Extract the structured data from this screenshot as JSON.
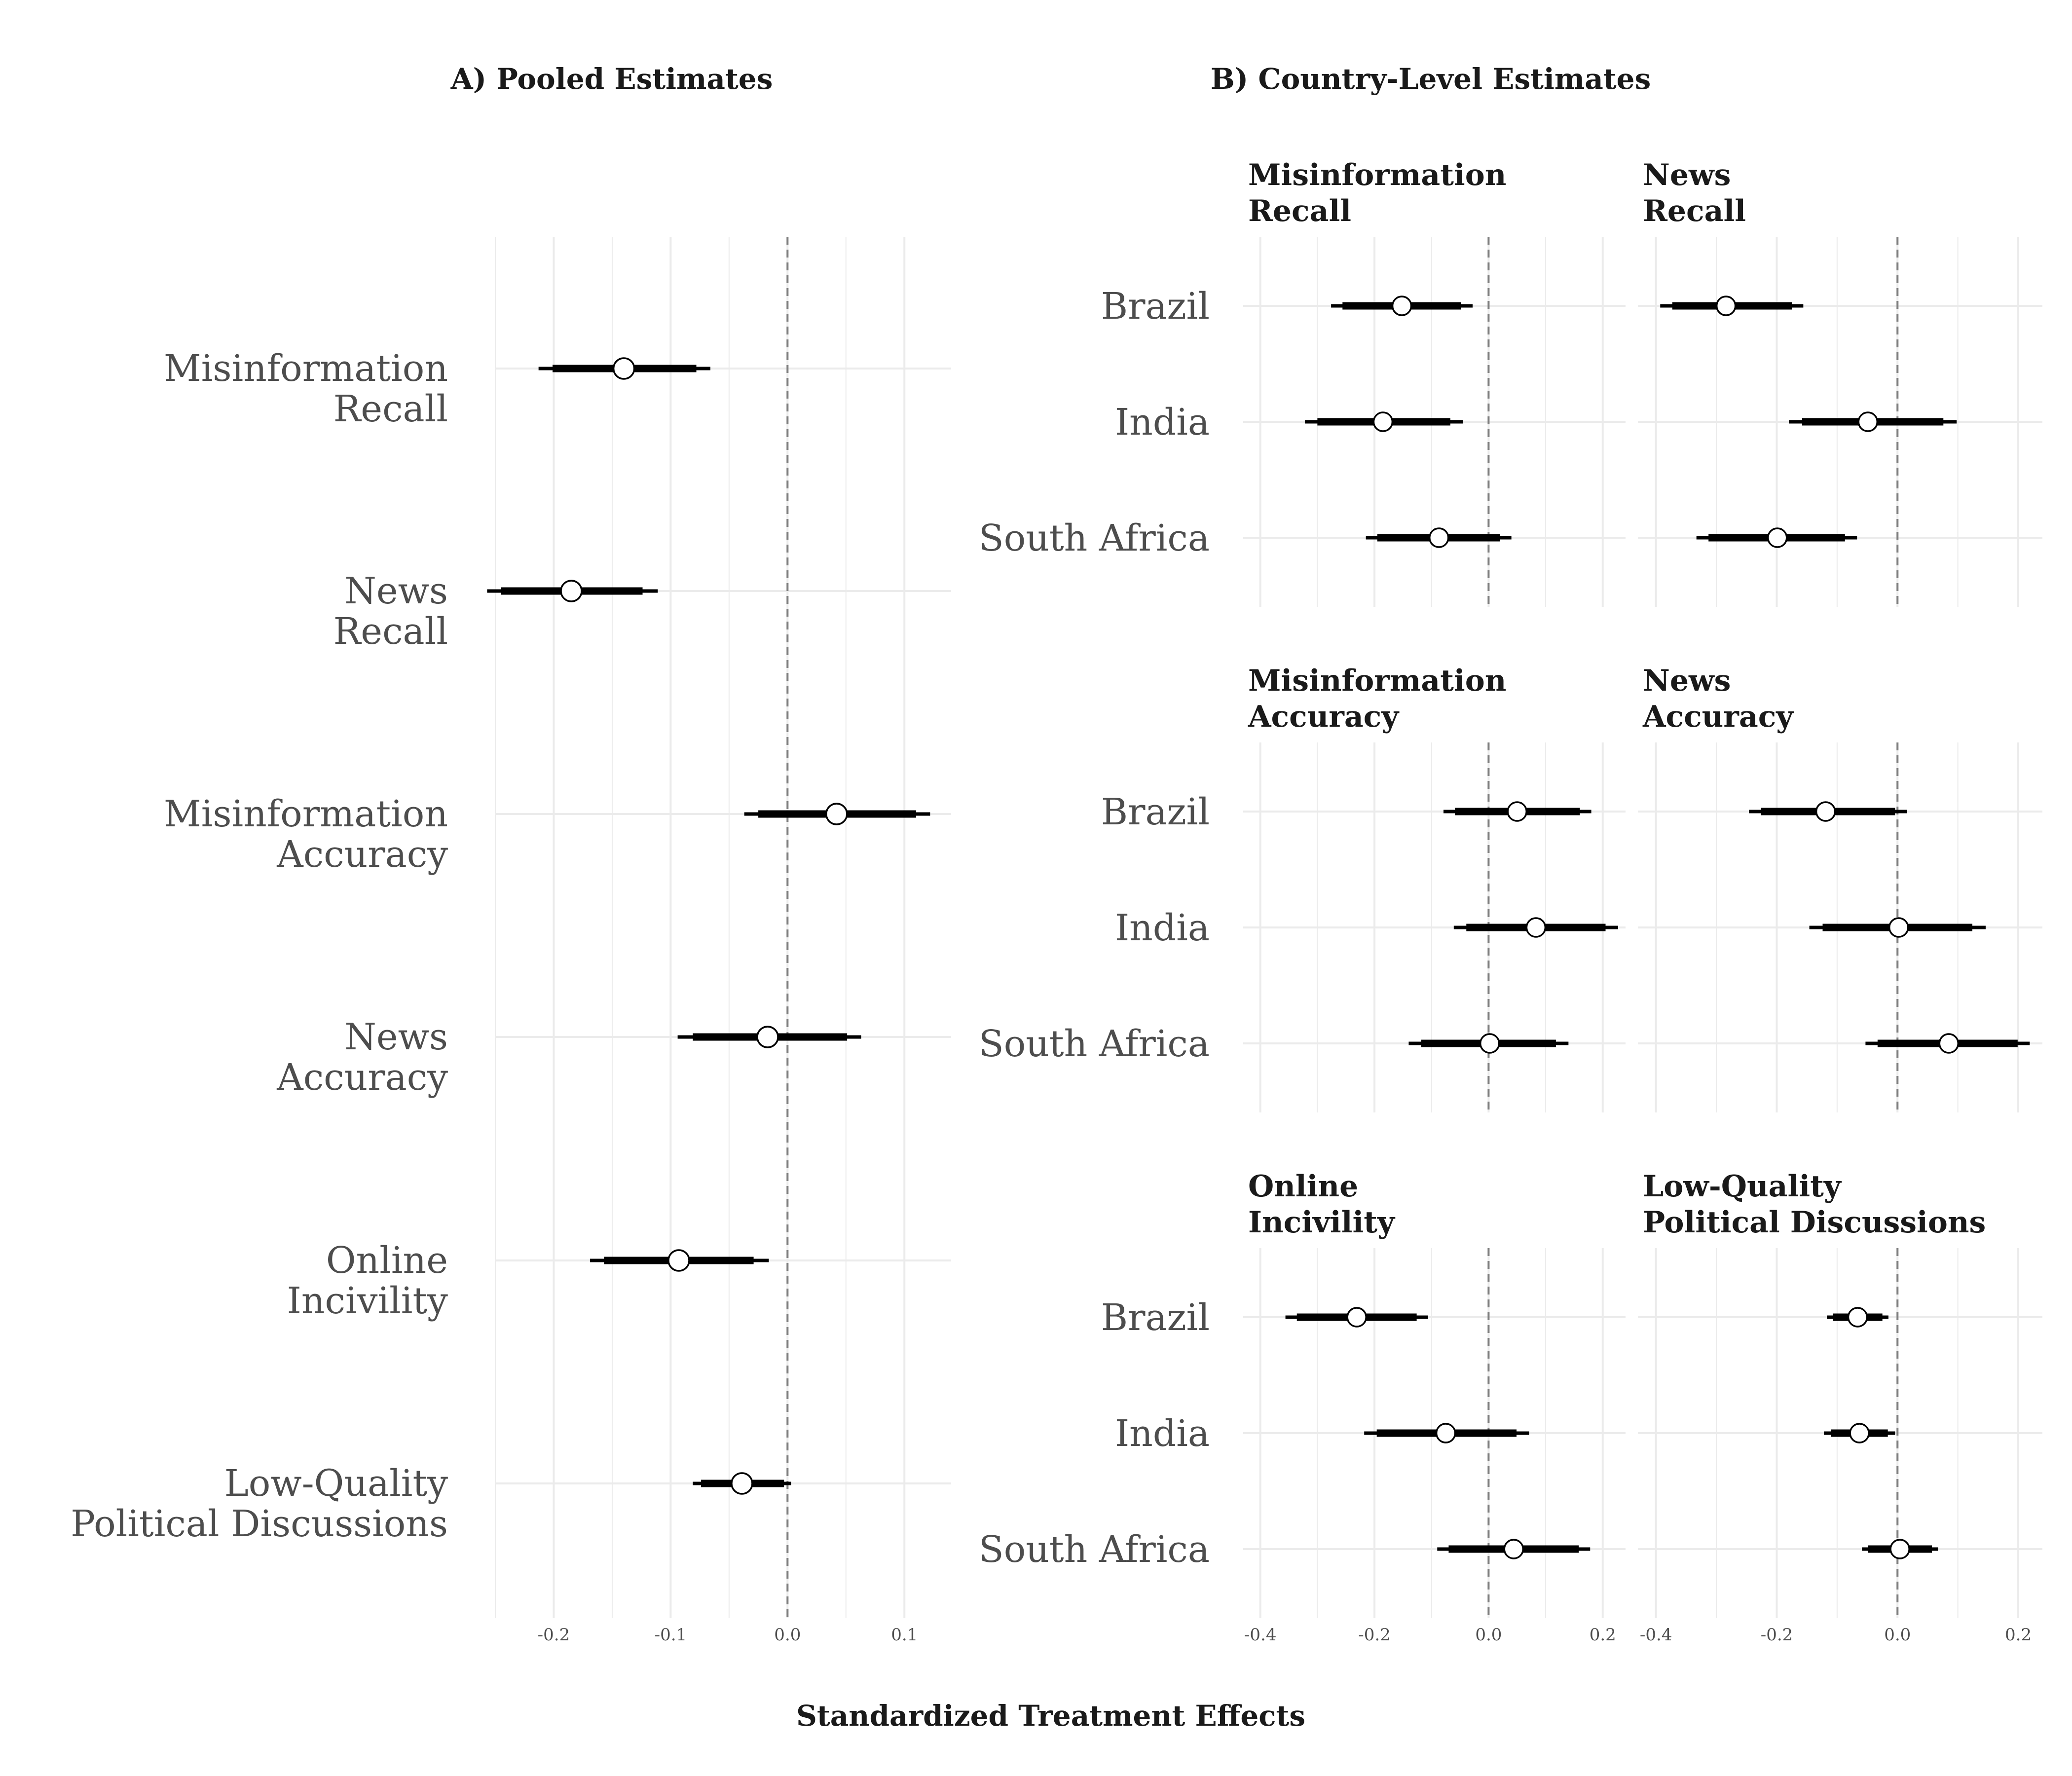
{
  "headings": {
    "pooled": "A) Pooled Estimates",
    "country": "B) Country-Level Estimates"
  },
  "xlabel": "Standardized Treatment Effects",
  "chart_data": [
    {
      "type": "forest",
      "title": "A) Pooled Estimates",
      "xlim": [
        -0.25,
        0.14
      ],
      "xticks": [
        -0.2,
        -0.1,
        0.0,
        0.1
      ],
      "xtick_labels": [
        "-0.2",
        "-0.1",
        "0.0",
        "0.1"
      ],
      "reference_line": 0.0,
      "grid": true,
      "categories": [
        [
          "Misinformation",
          "Recall"
        ],
        [
          "News",
          "Recall"
        ],
        [
          "Misinformation",
          "Accuracy"
        ],
        [
          "News",
          "Accuracy"
        ],
        [
          "Online",
          "Incivility"
        ],
        [
          "Low-Quality",
          "Political Discussions"
        ]
      ],
      "estimates": [
        -0.14,
        -0.185,
        0.042,
        -0.017,
        -0.093,
        -0.039
      ],
      "ci90": [
        [
          -0.201,
          -0.078
        ],
        [
          -0.245,
          -0.124
        ],
        [
          -0.025,
          0.11
        ],
        [
          -0.081,
          0.051
        ],
        [
          -0.157,
          -0.029
        ],
        [
          -0.074,
          -0.003
        ]
      ],
      "ci95": [
        [
          -0.213,
          -0.066
        ],
        [
          -0.257,
          -0.111
        ],
        [
          -0.037,
          0.122
        ],
        [
          -0.094,
          0.063
        ],
        [
          -0.169,
          -0.016
        ],
        [
          -0.081,
          0.003
        ]
      ]
    },
    {
      "type": "forest",
      "title": "B) Country-Level Estimates",
      "xlim": [
        -0.43,
        0.24
      ],
      "xticks": [
        -0.4,
        -0.2,
        0.0,
        0.2
      ],
      "xtick_labels": [
        "-0.4",
        "-0.2",
        "0.0",
        "0.2"
      ],
      "reference_line": 0.0,
      "grid": true,
      "countries": [
        "Brazil",
        "India",
        "South Africa"
      ],
      "facets": [
        {
          "title": [
            "Misinformation",
            "Recall"
          ],
          "estimates": [
            -0.152,
            -0.185,
            -0.087
          ],
          "ci90": [
            [
              -0.256,
              -0.048
            ],
            [
              -0.3,
              -0.067
            ],
            [
              -0.195,
              0.02
            ]
          ],
          "ci95": [
            [
              -0.276,
              -0.028
            ],
            [
              -0.322,
              -0.045
            ],
            [
              -0.215,
              0.04
            ]
          ]
        },
        {
          "title": [
            "News",
            "Recall"
          ],
          "estimates": [
            -0.284,
            -0.049,
            -0.199
          ],
          "ci90": [
            [
              -0.373,
              -0.175
            ],
            [
              -0.158,
              0.076
            ],
            [
              -0.313,
              -0.087
            ]
          ],
          "ci95": [
            [
              -0.393,
              -0.156
            ],
            [
              -0.18,
              0.098
            ],
            [
              -0.333,
              -0.067
            ]
          ]
        },
        {
          "title": [
            "Misinformation",
            "Accuracy"
          ],
          "estimates": [
            0.05,
            0.083,
            0.002
          ],
          "ci90": [
            [
              -0.059,
              0.16
            ],
            [
              -0.039,
              0.205
            ],
            [
              -0.118,
              0.118
            ]
          ],
          "ci95": [
            [
              -0.079,
              0.18
            ],
            [
              -0.061,
              0.227
            ],
            [
              -0.14,
              0.14
            ]
          ]
        },
        {
          "title": [
            "News",
            "Accuracy"
          ],
          "estimates": [
            -0.119,
            0.002,
            0.085
          ],
          "ci90": [
            [
              -0.226,
              -0.004
            ],
            [
              -0.124,
              0.124
            ],
            [
              -0.033,
              0.199
            ]
          ],
          "ci95": [
            [
              -0.246,
              0.016
            ],
            [
              -0.146,
              0.146
            ],
            [
              -0.053,
              0.219
            ]
          ]
        },
        {
          "title": [
            "Online",
            "Incivility"
          ],
          "estimates": [
            -0.231,
            -0.075,
            0.044
          ],
          "ci90": [
            [
              -0.336,
              -0.126
            ],
            [
              -0.196,
              0.049
            ],
            [
              -0.07,
              0.158
            ]
          ],
          "ci95": [
            [
              -0.356,
              -0.106
            ],
            [
              -0.218,
              0.071
            ],
            [
              -0.09,
              0.178
            ]
          ]
        },
        {
          "title": [
            "Low-Quality",
            "Political Discussions"
          ],
          "estimates": [
            -0.066,
            -0.063,
            0.004
          ],
          "ci90": [
            [
              -0.107,
              -0.025
            ],
            [
              -0.11,
              -0.016
            ],
            [
              -0.049,
              0.057
            ]
          ],
          "ci95": [
            [
              -0.117,
              -0.015
            ],
            [
              -0.122,
              -0.004
            ],
            [
              -0.059,
              0.067
            ]
          ]
        }
      ]
    }
  ],
  "colors": {
    "grid": "#ebebeb",
    "ref_line": "#7f7f7f",
    "interval": "#000000",
    "point_fill": "#ffffff",
    "point_stroke": "#000000"
  }
}
